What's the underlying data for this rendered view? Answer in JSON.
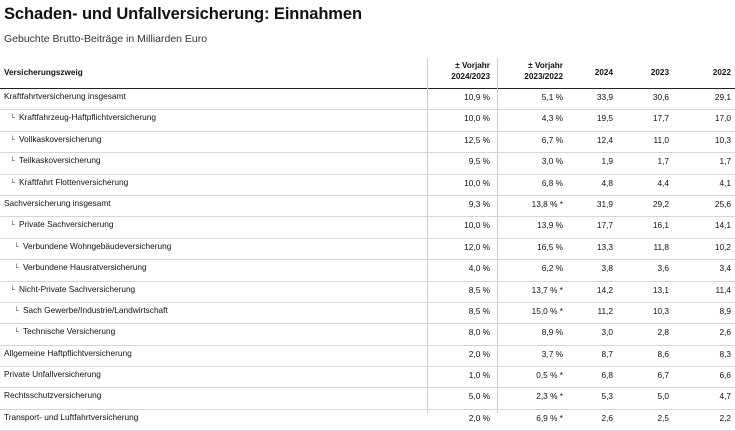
{
  "title": "Schaden- und Unfallversicherung: Einnahmen",
  "subtitle": "Gebuchte Brutto-Beiträge in Milliarden Euro",
  "columns": {
    "label": "Versicherungszweig",
    "c1_line1": "± Vorjahr",
    "c1_line2": "2024/2023",
    "c2_line1": "± Vorjahr",
    "c2_line2": "2023/2022",
    "c3": "2024",
    "c4": "2023",
    "c5": "2022"
  },
  "rows": [
    {
      "label": "Kraftfahrtversicherung insgesamt",
      "level": 0,
      "c1": "10,9 %",
      "c2": "5,1 %",
      "c3": "33,9",
      "c4": "30,6",
      "c5": "29,1"
    },
    {
      "label": "Kraftfahrzeug-Haftpflichtversicherung",
      "level": 1,
      "c1": "10,0 %",
      "c2": "4,3 %",
      "c3": "19,5",
      "c4": "17,7",
      "c5": "17,0"
    },
    {
      "label": "Vollkaskoversicherung",
      "level": 1,
      "c1": "12,5 %",
      "c2": "6,7 %",
      "c3": "12,4",
      "c4": "11,0",
      "c5": "10,3"
    },
    {
      "label": "Teilkaskoversicherung",
      "level": 1,
      "c1": "9,5 %",
      "c2": "3,0 %",
      "c3": "1,9",
      "c4": "1,7",
      "c5": "1,7"
    },
    {
      "label": "Kraftfahrt Flottenversicherung",
      "level": 1,
      "c1": "10,0 %",
      "c2": "6,8 %",
      "c3": "4,8",
      "c4": "4,4",
      "c5": "4,1"
    },
    {
      "label": "Sachversicherung insgesamt",
      "level": 0,
      "c1": "9,3 %",
      "c2": "13,8 % *",
      "c3": "31,9",
      "c4": "29,2",
      "c5": "25,6"
    },
    {
      "label": "Private Sachversicherung",
      "level": 1,
      "c1": "10,0 %",
      "c2": "13,9 %",
      "c3": "17,7",
      "c4": "16,1",
      "c5": "14,1"
    },
    {
      "label": "Verbundene Wohngebäudeversicherung",
      "level": 2,
      "c1": "12,0 %",
      "c2": "16,5 %",
      "c3": "13,3",
      "c4": "11,8",
      "c5": "10,2"
    },
    {
      "label": "Verbundene Hausratversicherung",
      "level": 2,
      "c1": "4,0 %",
      "c2": "6,2 %",
      "c3": "3,8",
      "c4": "3,6",
      "c5": "3,4"
    },
    {
      "label": "Nicht-Private Sachversicherung",
      "level": 1,
      "c1": "8,5 %",
      "c2": "13,7 % *",
      "c3": "14,2",
      "c4": "13,1",
      "c5": "11,4"
    },
    {
      "label": "Sach Gewerbe/Industrie/Landwirtschaft",
      "level": 2,
      "c1": "8,5 %",
      "c2": "15,0 % *",
      "c3": "11,2",
      "c4": "10,3",
      "c5": "8,9"
    },
    {
      "label": "Technische Versicherung",
      "level": 2,
      "c1": "8,0 %",
      "c2": "8,9 %",
      "c3": "3,0",
      "c4": "2,8",
      "c5": "2,6"
    },
    {
      "label": "Allgemeine Haftpflichtversicherung",
      "level": 0,
      "c1": "2,0 %",
      "c2": "3,7 %",
      "c3": "8,7",
      "c4": "8,6",
      "c5": "8,3"
    },
    {
      "label": "Private Unfallversicherung",
      "level": 0,
      "c1": "1,0 %",
      "c2": "0,5 % *",
      "c3": "6,8",
      "c4": "6,7",
      "c5": "6,6"
    },
    {
      "label": "Rechtsschutzversicherung",
      "level": 0,
      "c1": "5,0 %",
      "c2": "2,3 % *",
      "c3": "5,3",
      "c4": "5,0",
      "c5": "4,7"
    },
    {
      "label": "Transport- und Luftfahrtversicherung",
      "level": 0,
      "c1": "2,0 %",
      "c2": "6,9 % *",
      "c3": "2,6",
      "c4": "2,5",
      "c5": "2,2"
    }
  ]
}
